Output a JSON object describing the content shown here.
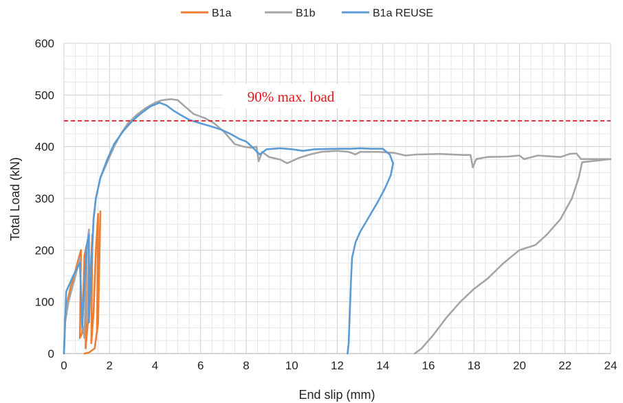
{
  "chart_data": {
    "type": "line",
    "xlabel": "End slip (mm)",
    "ylabel": "Total Load (kN)",
    "xlim": [
      0,
      24
    ],
    "ylim": [
      0,
      600
    ],
    "xticks": [
      0,
      2,
      4,
      6,
      8,
      10,
      12,
      14,
      16,
      18,
      20,
      22,
      24
    ],
    "yticks": [
      0,
      100,
      200,
      300,
      400,
      500,
      600
    ],
    "grid": true,
    "legend_position": "top",
    "reference_line": {
      "y": 450,
      "color": "#e8141e",
      "style": "dashed",
      "label": "90% max. load"
    },
    "series": [
      {
        "name": "B1a",
        "color": "#ed7d31",
        "points": [
          [
            0,
            0
          ],
          [
            0.05,
            70
          ],
          [
            0.15,
            100
          ],
          [
            0.3,
            130
          ],
          [
            0.5,
            160
          ],
          [
            0.65,
            185
          ],
          [
            0.75,
            200
          ],
          [
            0.7,
            30
          ],
          [
            0.8,
            40
          ],
          [
            0.9,
            190
          ],
          [
            1.0,
            210
          ],
          [
            0.95,
            10
          ],
          [
            1.05,
            60
          ],
          [
            1.15,
            150
          ],
          [
            1.25,
            230
          ],
          [
            1.2,
            20
          ],
          [
            1.3,
            80
          ],
          [
            1.4,
            200
          ],
          [
            1.5,
            270
          ],
          [
            1.45,
            40
          ],
          [
            1.55,
            180
          ],
          [
            1.6,
            275
          ],
          [
            1.5,
            60
          ],
          [
            1.35,
            10
          ],
          [
            1.1,
            2
          ],
          [
            0.9,
            0
          ]
        ]
      },
      {
        "name": "B1b",
        "color": "#a5a5a5",
        "points": [
          [
            0,
            0
          ],
          [
            0.05,
            60
          ],
          [
            0.2,
            100
          ],
          [
            0.5,
            150
          ],
          [
            0.7,
            185
          ],
          [
            0.8,
            60
          ],
          [
            0.9,
            30
          ],
          [
            1.0,
            200
          ],
          [
            1.1,
            240
          ],
          [
            1.05,
            70
          ],
          [
            1.15,
            130
          ],
          [
            1.3,
            260
          ],
          [
            1.4,
            300
          ],
          [
            1.6,
            340
          ],
          [
            1.9,
            370
          ],
          [
            2.2,
            400
          ],
          [
            2.5,
            425
          ],
          [
            2.8,
            445
          ],
          [
            3.2,
            462
          ],
          [
            3.6,
            475
          ],
          [
            4.0,
            485
          ],
          [
            4.3,
            490
          ],
          [
            4.7,
            492
          ],
          [
            5.0,
            490
          ],
          [
            5.3,
            478
          ],
          [
            5.7,
            463
          ],
          [
            6.2,
            455
          ],
          [
            6.6,
            445
          ],
          [
            7.0,
            430
          ],
          [
            7.5,
            405
          ],
          [
            7.9,
            400
          ],
          [
            8.2,
            398
          ],
          [
            8.45,
            400
          ],
          [
            8.55,
            372
          ],
          [
            8.7,
            390
          ],
          [
            9.0,
            380
          ],
          [
            9.5,
            375
          ],
          [
            9.8,
            368
          ],
          [
            10.3,
            378
          ],
          [
            10.8,
            385
          ],
          [
            11.3,
            390
          ],
          [
            12.0,
            392
          ],
          [
            12.5,
            390
          ],
          [
            12.8,
            385
          ],
          [
            13.0,
            390
          ],
          [
            13.8,
            390
          ],
          [
            14.5,
            388
          ],
          [
            15.0,
            383
          ],
          [
            15.5,
            385
          ],
          [
            16.5,
            386
          ],
          [
            17.5,
            384
          ],
          [
            17.85,
            384
          ],
          [
            17.95,
            360
          ],
          [
            18.1,
            376
          ],
          [
            18.6,
            380
          ],
          [
            19.5,
            381
          ],
          [
            20.0,
            383
          ],
          [
            20.2,
            376
          ],
          [
            20.8,
            383
          ],
          [
            21.8,
            380
          ],
          [
            22.2,
            386
          ],
          [
            22.5,
            387
          ],
          [
            22.7,
            376
          ],
          [
            24.0,
            376
          ],
          [
            22.75,
            370
          ],
          [
            22.6,
            340
          ],
          [
            22.3,
            300
          ],
          [
            21.8,
            260
          ],
          [
            21.2,
            230
          ],
          [
            20.7,
            210
          ],
          [
            20.0,
            200
          ],
          [
            19.3,
            175
          ],
          [
            18.6,
            145
          ],
          [
            18.0,
            125
          ],
          [
            17.4,
            100
          ],
          [
            16.8,
            70
          ],
          [
            16.2,
            35
          ],
          [
            15.7,
            10
          ],
          [
            15.4,
            0
          ]
        ]
      },
      {
        "name": "B1a REUSE",
        "color": "#5b9bd5",
        "points": [
          [
            0,
            0
          ],
          [
            0.1,
            120
          ],
          [
            0.4,
            150
          ],
          [
            0.7,
            175
          ],
          [
            0.8,
            50
          ],
          [
            1.0,
            210
          ],
          [
            1.1,
            230
          ],
          [
            1.1,
            60
          ],
          [
            1.3,
            260
          ],
          [
            1.4,
            300
          ],
          [
            1.6,
            340
          ],
          [
            1.9,
            375
          ],
          [
            2.2,
            405
          ],
          [
            2.6,
            430
          ],
          [
            3.0,
            450
          ],
          [
            3.4,
            465
          ],
          [
            3.8,
            478
          ],
          [
            4.2,
            485
          ],
          [
            4.5,
            480
          ],
          [
            4.8,
            470
          ],
          [
            5.1,
            462
          ],
          [
            5.5,
            452
          ],
          [
            6.0,
            445
          ],
          [
            6.4,
            440
          ],
          [
            6.9,
            433
          ],
          [
            7.3,
            425
          ],
          [
            7.7,
            415
          ],
          [
            8.0,
            410
          ],
          [
            8.1,
            406
          ],
          [
            8.6,
            385
          ],
          [
            8.9,
            395
          ],
          [
            9.5,
            397
          ],
          [
            10.0,
            395
          ],
          [
            10.5,
            392
          ],
          [
            11.0,
            395
          ],
          [
            12.0,
            396
          ],
          [
            12.6,
            396
          ],
          [
            13.0,
            397
          ],
          [
            13.5,
            396
          ],
          [
            14.0,
            396
          ],
          [
            14.3,
            385
          ],
          [
            14.45,
            368
          ],
          [
            14.35,
            345
          ],
          [
            14.1,
            320
          ],
          [
            13.8,
            295
          ],
          [
            13.4,
            265
          ],
          [
            13.0,
            235
          ],
          [
            12.8,
            215
          ],
          [
            12.65,
            185
          ],
          [
            12.6,
            140
          ],
          [
            12.55,
            80
          ],
          [
            12.5,
            20
          ],
          [
            12.45,
            0
          ]
        ]
      }
    ]
  }
}
